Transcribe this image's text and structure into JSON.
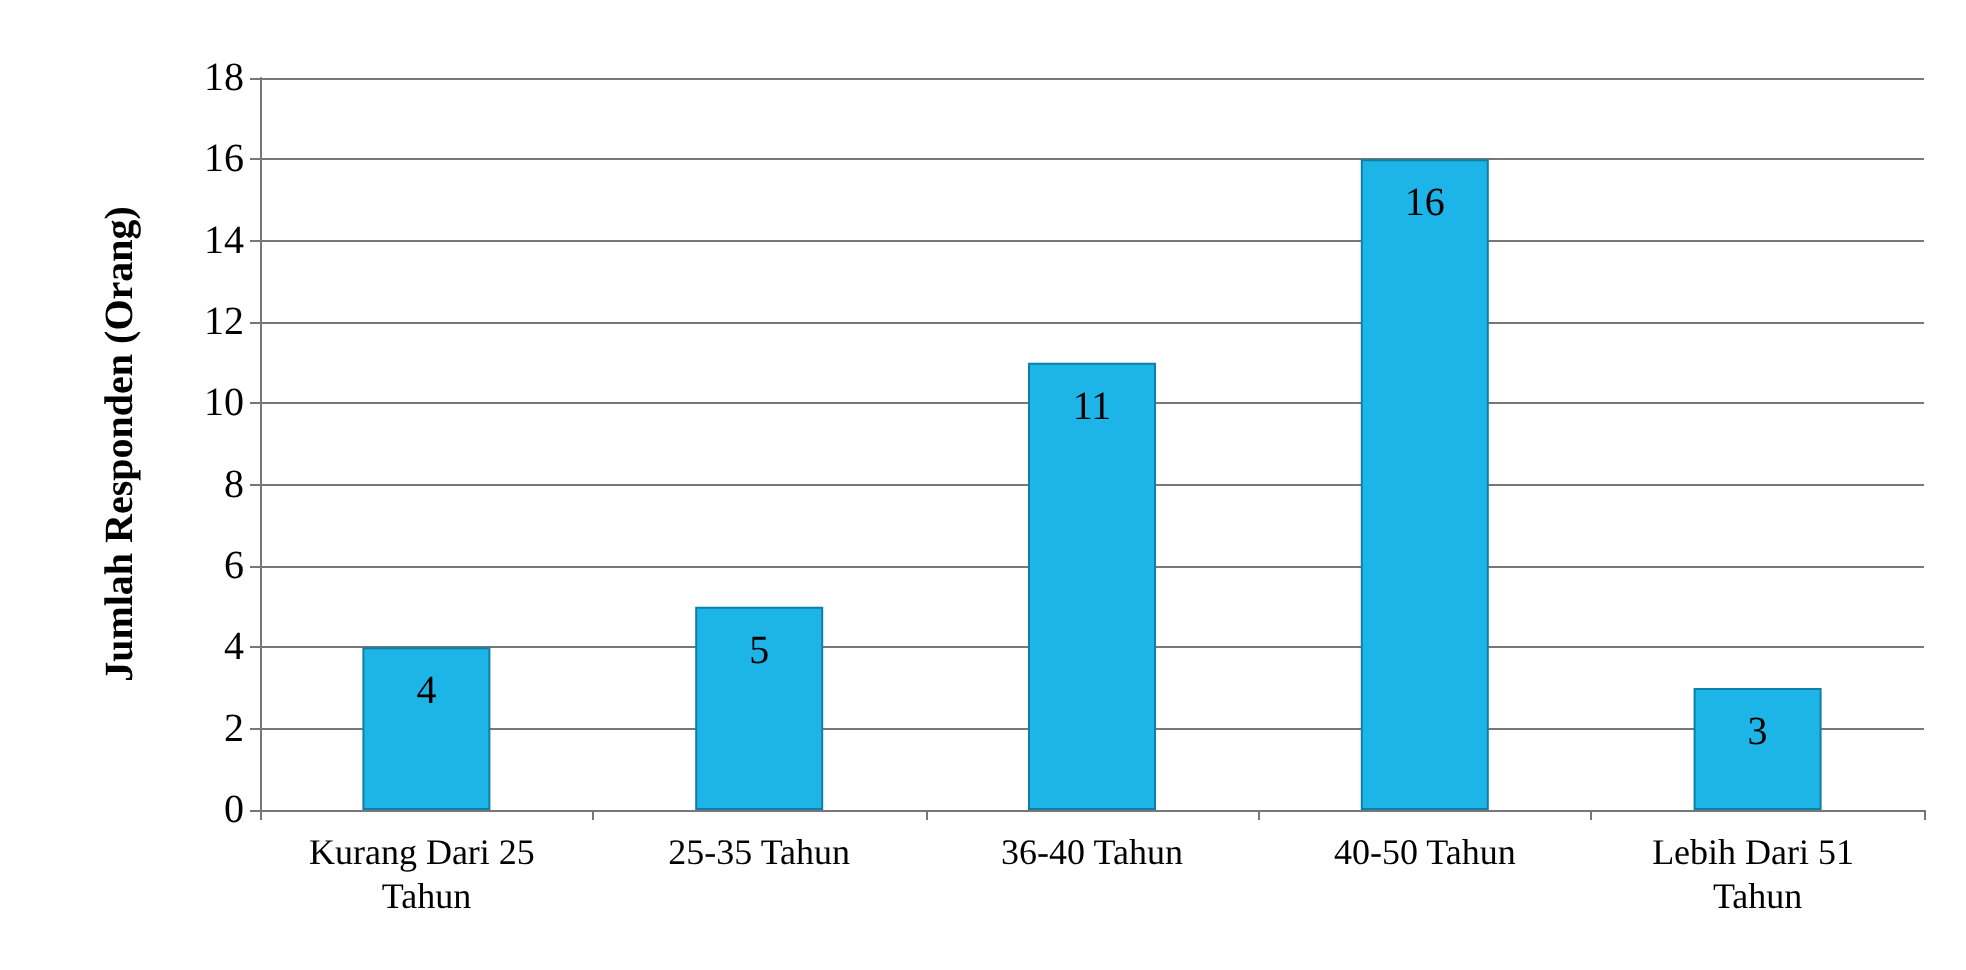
{
  "chart_data": {
    "type": "bar",
    "ylabel": "Jumlah Responden (Orang)",
    "categories": [
      "Kurang Dari 25 Tahun",
      "25-35 Tahun",
      "36-40 Tahun",
      "40-50 Tahun",
      "Lebih Dari 51 Tahun"
    ],
    "values": [
      4,
      5,
      11,
      16,
      3
    ],
    "color": "#1db4e8",
    "ylim": [
      0,
      18
    ],
    "yticks": [
      0,
      2,
      4,
      6,
      8,
      10,
      12,
      14,
      16,
      18
    ],
    "grid": "y",
    "data_labels": true
  }
}
